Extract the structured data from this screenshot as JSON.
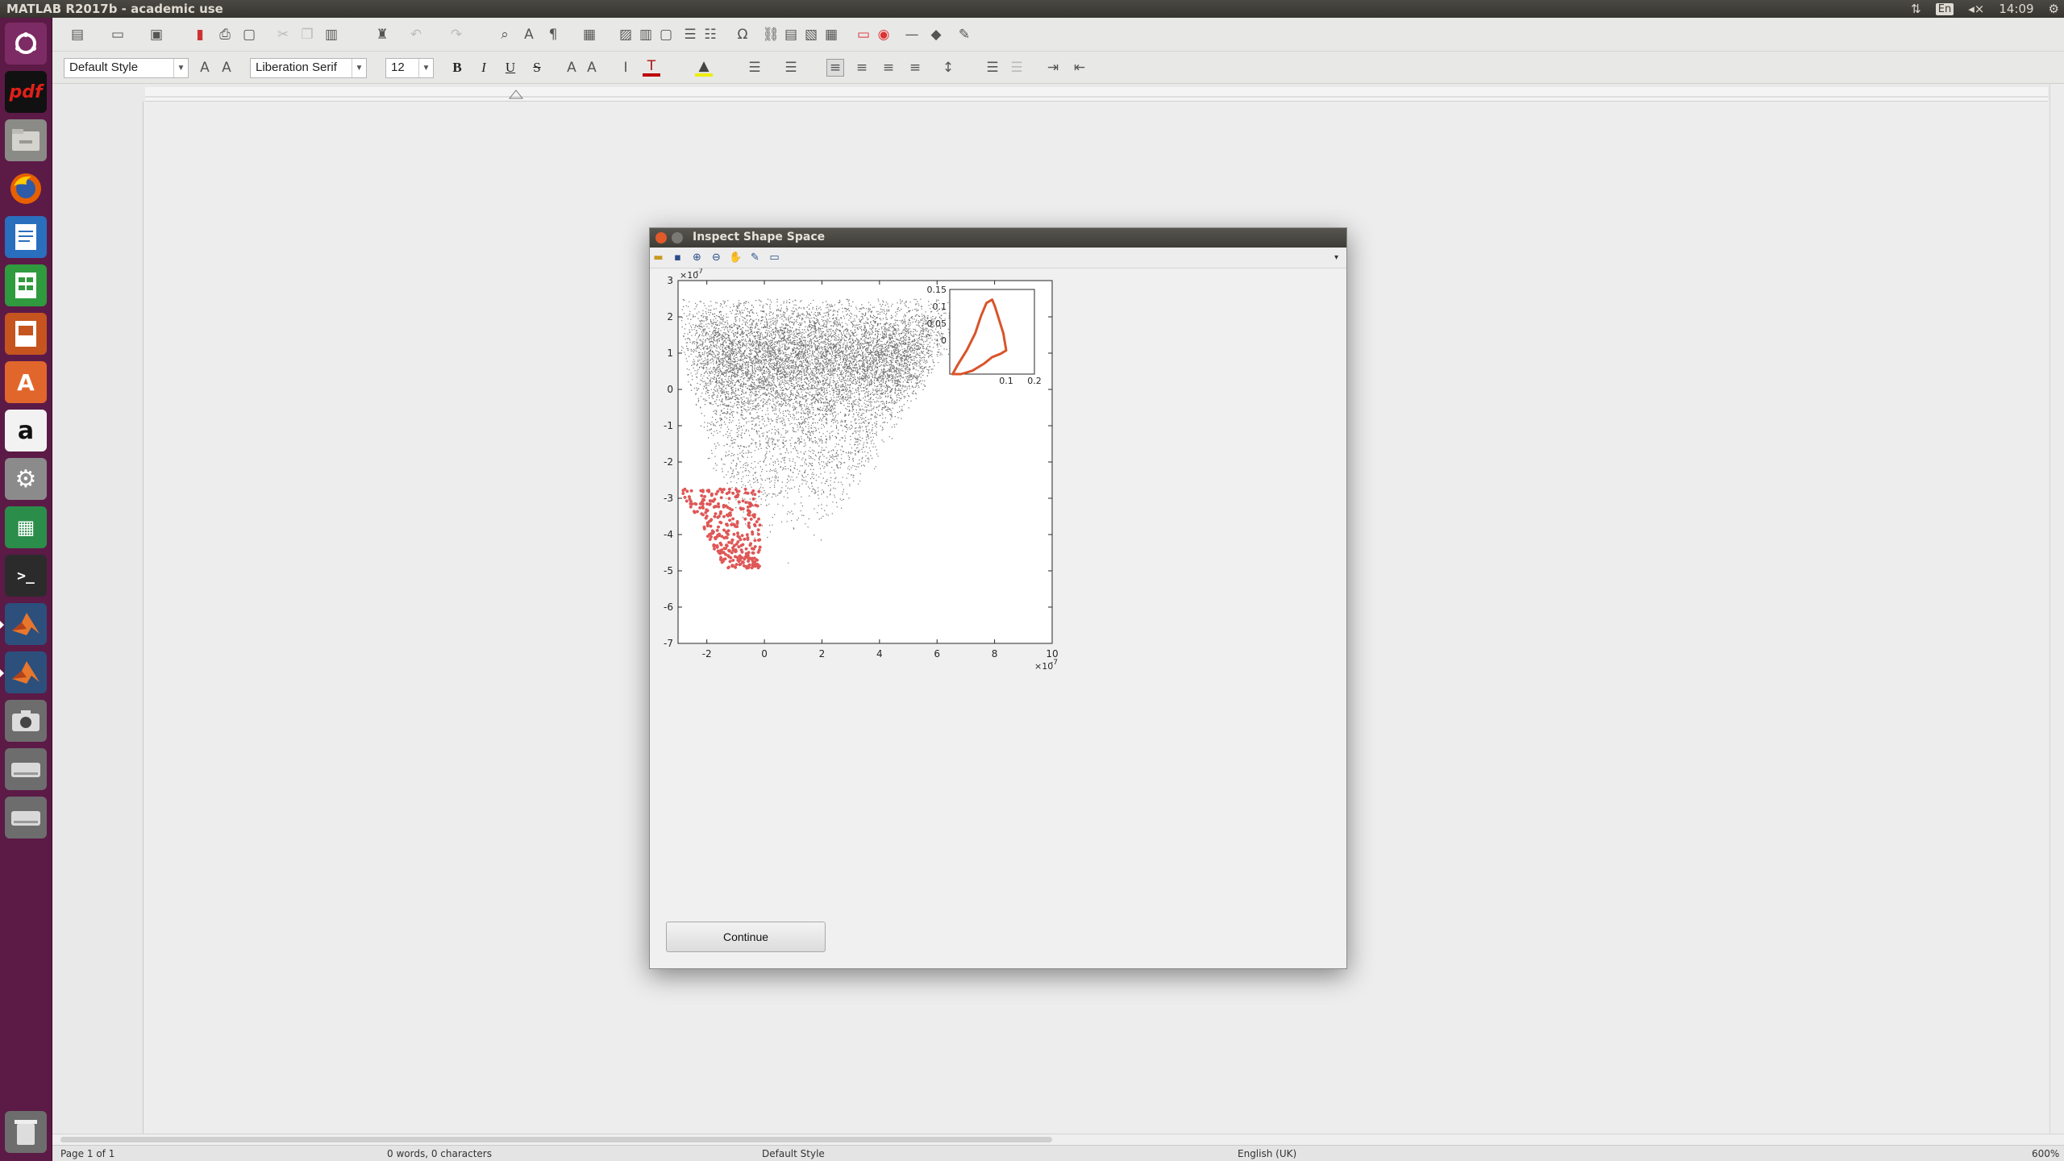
{
  "topbar": {
    "title": "MATLAB R2017b - academic use",
    "keyboard": "En",
    "time": "14:09"
  },
  "launcher": {
    "apps": [
      "ubuntu-dash-icon",
      "pdf-icon",
      "files-icon",
      "firefox-icon",
      "writer-icon",
      "calc-icon",
      "impress-icon",
      "software-center-icon",
      "amazon-icon",
      "settings-icon",
      "spreadsheet-icon",
      "terminal-icon",
      "matlab-icon",
      "matlab-icon",
      "screenshot-icon",
      "drive-icon",
      "drive-icon",
      "trash-icon"
    ],
    "pdf_label": "pdf",
    "amazon_label": "a"
  },
  "writer": {
    "paragraph_style": "Default Style",
    "font_name": "Liberation Serif",
    "font_size": "12",
    "bold": "B",
    "italic": "I",
    "underline": "U",
    "strike": "S",
    "status": {
      "page": "Page 1 of 1",
      "words": "0 words, 0 characters",
      "style": "Default Style",
      "language": "English (UK)",
      "zoom": "600%"
    }
  },
  "dialog": {
    "title": "Inspect Shape Space",
    "continue_label": "Continue",
    "accent_red": "#d93a3a",
    "curve_color": "#d9542a"
  },
  "chart_data": [
    {
      "type": "scatter",
      "title": "",
      "xlabel": "",
      "ylabel": "",
      "xlim": [
        -3,
        10
      ],
      "ylim": [
        -7,
        3
      ],
      "x_ticks": [
        "-2",
        "0",
        "2",
        "4",
        "6",
        "8",
        "10"
      ],
      "y_ticks": [
        "3",
        "2",
        "1",
        "0",
        "-1",
        "-2",
        "-3",
        "-4",
        "-5",
        "-6",
        "-7"
      ],
      "x_exponent": "×10",
      "x_exponent_power": "-7",
      "y_exponent": "×10",
      "y_exponent_power": "-7",
      "grid": false,
      "series": [
        {
          "color": "#6e6e6e",
          "description_points": "dense gray cloud, ~20000 points, upper region spanning x≈-2.9..7.5, y≈-6.3..2.5, narrowing to a point near x≈0, y≈-6"
        },
        {
          "color": "#d93a3a",
          "description_points": "red highlighted selection, ~300 points, x≈-3..-0.2, y≈-4.9..-2.7"
        }
      ]
    },
    {
      "type": "line",
      "title": "",
      "xlim": [
        -0.1,
        0.2
      ],
      "ylim": [
        -0.1,
        0.15
      ],
      "x_ticks": [
        "0.1",
        "0.2"
      ],
      "y_ticks": [
        "0.15",
        "0.1",
        "0.05",
        "0"
      ],
      "series": [
        {
          "color": "#d9542a",
          "x": [
            -0.09,
            -0.07,
            -0.04,
            -0.01,
            0.01,
            0.03,
            0.05,
            0.06,
            0.09,
            0.1,
            0.08,
            0.05,
            0.02,
            -0.02,
            -0.06,
            -0.085,
            -0.09
          ],
          "y": [
            -0.1,
            -0.07,
            -0.03,
            0.02,
            0.07,
            0.11,
            0.12,
            0.1,
            0.02,
            -0.03,
            -0.04,
            -0.05,
            -0.07,
            -0.09,
            -0.1,
            -0.1,
            -0.1
          ]
        }
      ]
    }
  ]
}
